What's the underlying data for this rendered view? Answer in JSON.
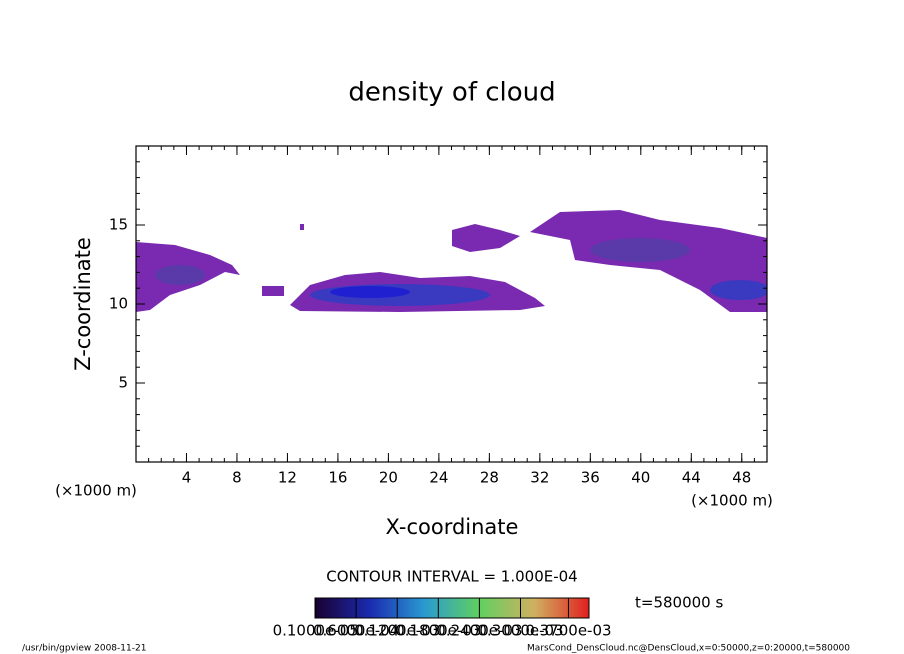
{
  "chart_data": {
    "type": "contour",
    "title": "density of cloud",
    "x_label": "X-coordinate",
    "y_label": "Z-coordinate",
    "x_unit": "(×1000 m)",
    "y_unit": "(×1000 m)",
    "xlim": [
      0,
      50
    ],
    "ylim": [
      0,
      20
    ],
    "xticks": [
      4,
      8,
      12,
      16,
      20,
      24,
      28,
      32,
      36,
      40,
      44,
      48
    ],
    "yticks": [
      5,
      10,
      15
    ],
    "contour_note": "CONTOUR INTERVAL = 1.000E-04",
    "time_label": "t=580000 s",
    "colorbar": {
      "lim": [
        0,
        0.0004
      ],
      "ticks": [
        {
          "value": 1e-06,
          "label": "0.1000e-05"
        },
        {
          "value": 6e-05,
          "label": "0.6000e-04"
        },
        {
          "value": 0.00012,
          "label": "0.1200e-03"
        },
        {
          "value": 0.00018,
          "label": "0.1800e-03"
        },
        {
          "value": 0.00024,
          "label": "0.2400e-03"
        },
        {
          "value": 0.0003,
          "label": "0.3000e-03"
        },
        {
          "value": 0.00037,
          "label": "0.3700e-03"
        }
      ]
    },
    "footer_left": "/usr/bin/gpview  2008-11-21",
    "footer_right": "MarsCond_DensCloud.nc@DensCloud,x=0:50000,z=0:20000,t=580000"
  }
}
